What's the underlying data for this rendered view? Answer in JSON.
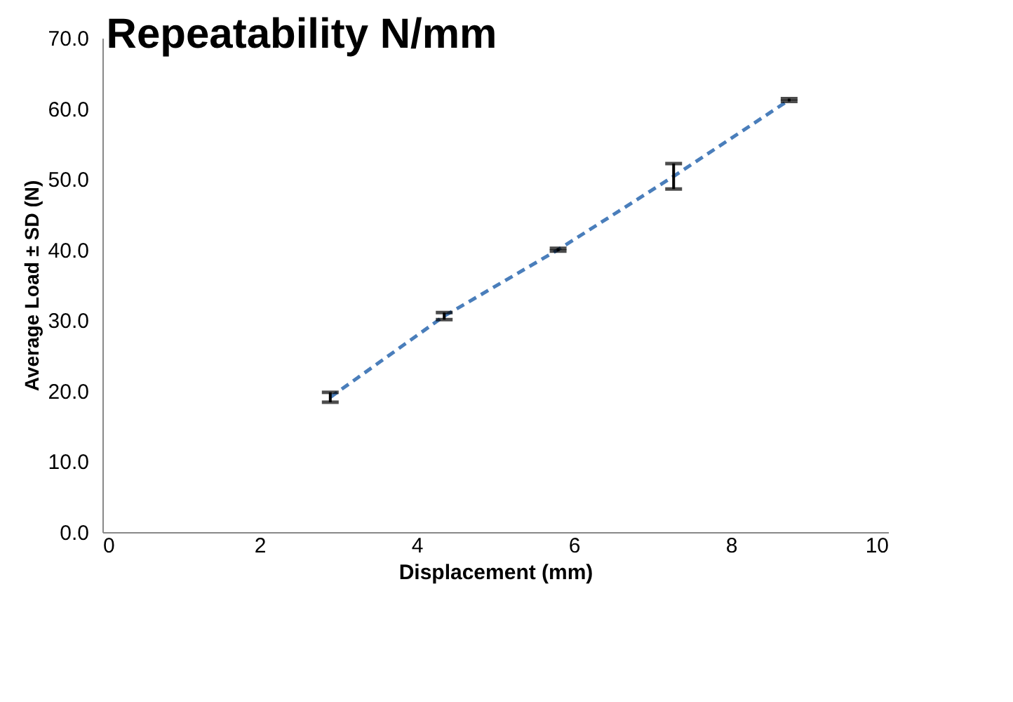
{
  "chart_data": {
    "type": "line",
    "title": "Repeatability N/mm",
    "xlabel": "Displacement (mm)",
    "ylabel": "Average Load ± SD (N)",
    "x": [
      2.9,
      4.35,
      5.8,
      7.27,
      8.74
    ],
    "series": [
      {
        "color": "#4a7ebb",
        "values": [
          19.1,
          30.6,
          40.0,
          50.4,
          61.2
        ],
        "errors": [
          0.7,
          0.5,
          0.2,
          1.8,
          0.2
        ]
      }
    ],
    "line_style": "dashed",
    "marker": "none",
    "grid": false,
    "xlim": [
      0,
      10
    ],
    "xticks": [
      0,
      2,
      4,
      6,
      8,
      10
    ],
    "ylim": [
      0,
      70
    ],
    "yticks": [
      {
        "value": 0,
        "label": "0.0"
      },
      {
        "value": 10,
        "label": "10.0"
      },
      {
        "value": 20,
        "label": "20.0"
      },
      {
        "value": 30,
        "label": "30.0"
      },
      {
        "value": 40,
        "label": "40.0"
      },
      {
        "value": 50,
        "label": "50.0"
      },
      {
        "value": 60,
        "label": "60.0"
      },
      {
        "value": 70,
        "label": "70.0"
      }
    ]
  }
}
